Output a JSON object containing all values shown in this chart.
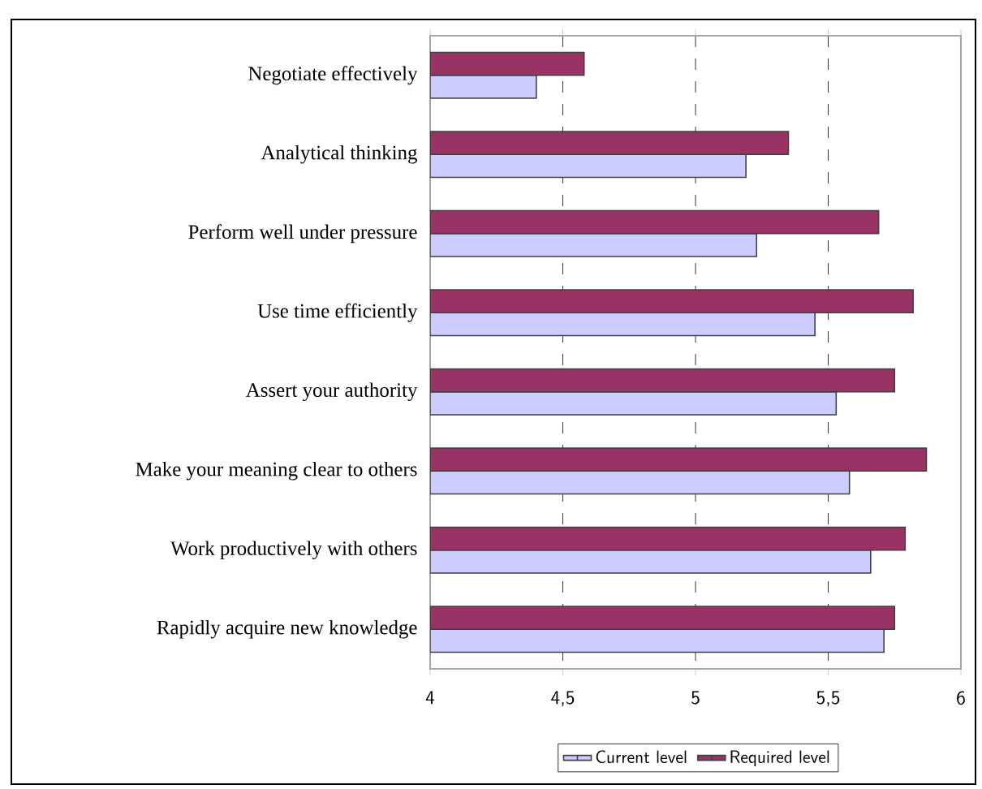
{
  "chart_data": {
    "type": "bar",
    "orientation": "horizontal",
    "categories": [
      "Negotiate effectively",
      "Analytical thinking",
      "Perform well under pressure",
      "Use time efficiently",
      "Assert your authority",
      "Make your meaning clear to others",
      "Work productively with others",
      "Rapidly acquire new knowledge"
    ],
    "series": [
      {
        "name": "Current level",
        "color": "#ccccff",
        "values": [
          4.4,
          5.19,
          5.23,
          5.45,
          5.53,
          5.58,
          5.66,
          5.71
        ]
      },
      {
        "name": "Required level",
        "color": "#993366",
        "values": [
          4.58,
          5.35,
          5.69,
          5.82,
          5.75,
          5.87,
          5.79,
          5.75
        ]
      }
    ],
    "xlim": [
      4,
      6
    ],
    "xticks": [
      4,
      {
        "value": 4.5,
        "label": "4,5"
      },
      5,
      {
        "value": 5.5,
        "label": "5,5"
      },
      6
    ],
    "grid": "x",
    "legend": "bottom"
  }
}
